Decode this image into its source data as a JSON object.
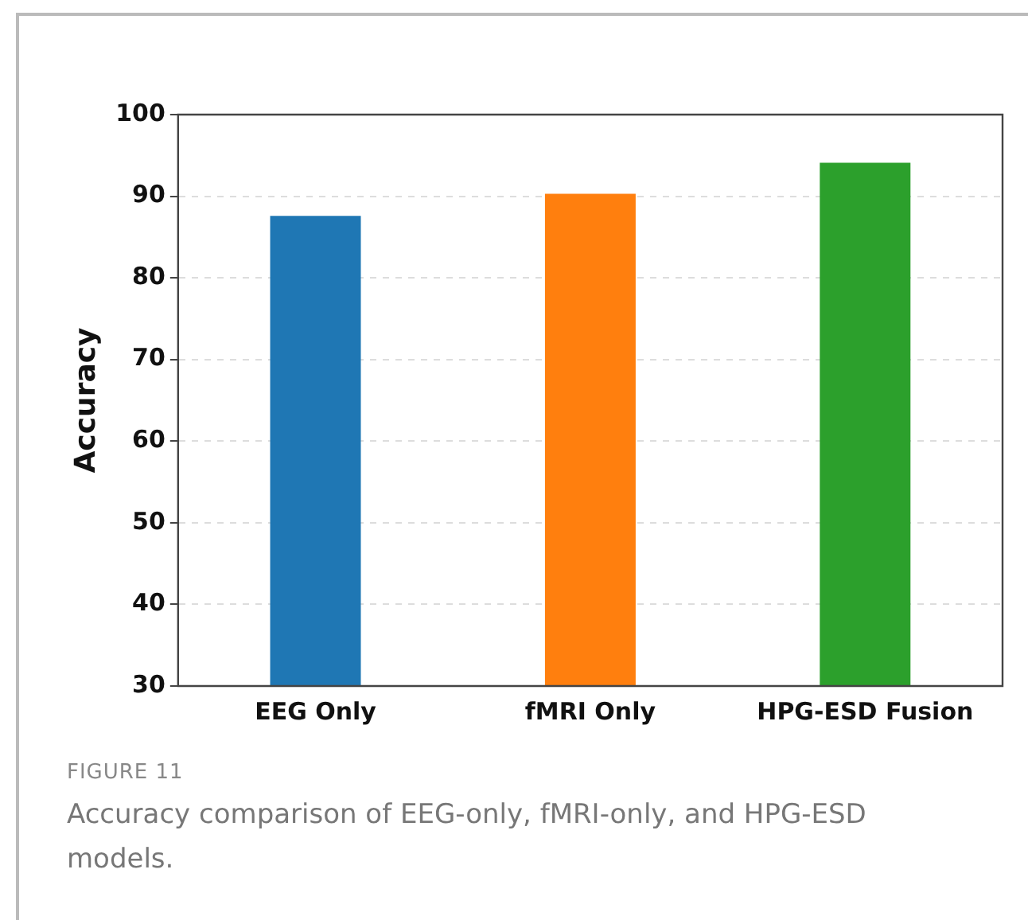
{
  "chart_data": {
    "type": "bar",
    "ylabel": "Accuracy",
    "categories": [
      "EEG Only",
      "fMRI Only",
      "HPG-ESD Fusion"
    ],
    "values": [
      87.6,
      90.3,
      94.1
    ],
    "colors": [
      "#1f77b4",
      "#ff7f0e",
      "#2ca02c"
    ],
    "ylim": [
      30,
      100
    ],
    "yticks": [
      30,
      40,
      50,
      60,
      70,
      80,
      90,
      100
    ],
    "grid": "y",
    "legend": false,
    "annotations": [
      "FIGURE 11",
      "Accuracy comparison of EEG-only, fMRI-only, and HPG-ESD models."
    ]
  }
}
